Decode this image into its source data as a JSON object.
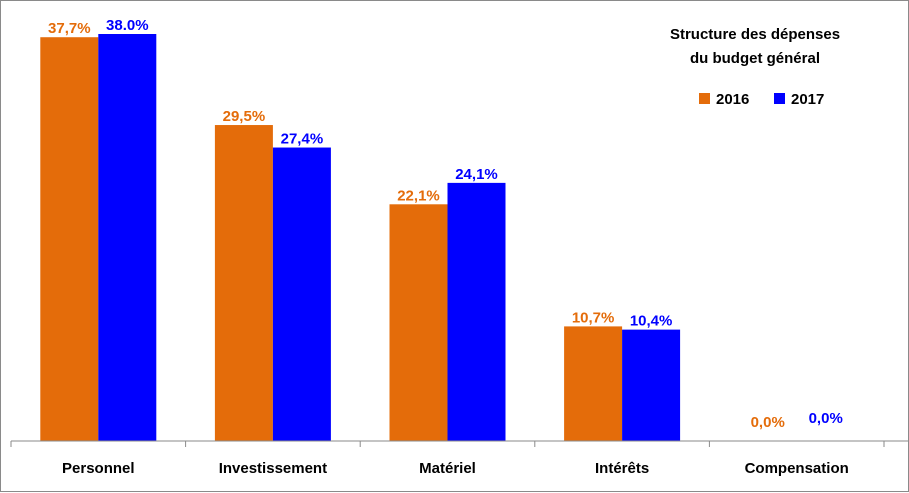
{
  "chart_data": {
    "type": "bar",
    "title_lines": [
      "Structure  des dépenses",
      "du  budget général"
    ],
    "categories": [
      "Personnel",
      "Investissement",
      "Matériel",
      "Intérêts",
      "Compensation"
    ],
    "series": [
      {
        "name": "2016",
        "color": "#e46c0a",
        "values": [
          37.7,
          29.5,
          22.1,
          10.7,
          0.0
        ],
        "labels": [
          "37,7%",
          "29,5%",
          "22,1%",
          "10,7%",
          "0,0%"
        ]
      },
      {
        "name": "2017",
        "color": "#0000ff",
        "values": [
          38.0,
          27.4,
          24.1,
          10.4,
          0.0
        ],
        "labels": [
          "38.0%",
          "27,4%",
          "24,1%",
          "10,4%",
          "0,0%"
        ]
      }
    ],
    "ylim": [
      0,
      38.0
    ],
    "grid": false,
    "legend": "top-right"
  }
}
